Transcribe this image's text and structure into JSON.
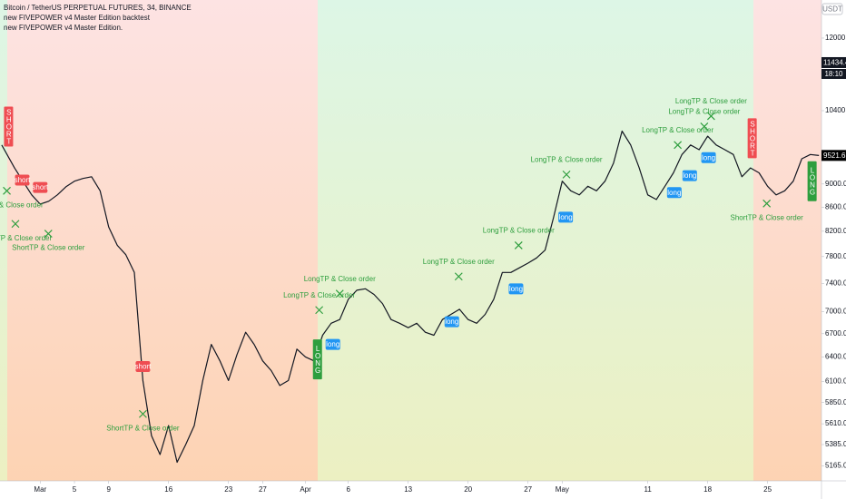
{
  "chart_data": {
    "type": "line",
    "title": "Bitcoin / TetherUS PERPETUAL FUTURES, 34, BINANCE",
    "subtitles": [
      "new FIVEPOWER v4 Master Edition backtest",
      "new FIVEPOWER v4 Master Edition."
    ],
    "currency": "USDT",
    "log_scale": true,
    "grid": false,
    "color": "#131722",
    "x": [
      -4.5,
      -3,
      -1,
      0,
      1,
      2,
      3,
      4,
      5,
      6,
      7,
      8,
      9,
      10,
      11,
      12,
      13,
      14,
      15,
      16,
      17,
      18,
      19,
      20,
      21,
      22,
      23,
      24,
      25,
      26,
      27,
      28,
      29,
      30,
      31,
      32,
      33,
      34,
      35,
      36,
      37,
      38,
      39,
      40,
      41,
      42,
      43,
      44,
      45,
      46,
      47,
      48,
      49,
      50,
      51,
      52,
      53,
      54,
      55,
      56,
      57,
      58,
      59,
      60,
      61,
      62,
      63,
      64,
      65,
      66,
      67,
      68,
      69,
      70,
      71,
      72,
      73,
      74,
      75,
      76,
      77,
      78,
      79,
      80,
      81,
      82,
      83,
      84,
      85,
      86,
      87,
      88,
      89,
      90,
      91
    ],
    "values": [
      9720,
      9290,
      8810,
      8650,
      8700,
      8810,
      8950,
      9050,
      9100,
      9130,
      8880,
      8270,
      7975,
      7830,
      7560,
      6110,
      5480,
      5280,
      5590,
      5200,
      5385,
      5590,
      6110,
      6560,
      6350,
      6110,
      6430,
      6720,
      6560,
      6350,
      6230,
      6050,
      6110,
      6500,
      6400,
      6350,
      6680,
      6840,
      6890,
      7170,
      7300,
      7320,
      7240,
      7110,
      6890,
      6840,
      6780,
      6840,
      6720,
      6680,
      6890,
      6960,
      7030,
      6890,
      6840,
      6960,
      7170,
      7560,
      7560,
      7630,
      7700,
      7780,
      7900,
      8430,
      9050,
      8880,
      8810,
      8960,
      8880,
      9050,
      9380,
      9990,
      9720,
      9290,
      8810,
      8730,
      8960,
      9200,
      9540,
      9720,
      9630,
      9890,
      9720,
      9630,
      9540,
      9130,
      9290,
      9200,
      8960,
      8810,
      8880,
      9050,
      9460,
      9540,
      9520
    ],
    "xlim": [
      -4.7,
      91.3
    ],
    "ylim": [
      5013,
      12936
    ],
    "xticks": [
      {
        "value": 0,
        "label": "Mar"
      },
      {
        "value": 4,
        "label": "5"
      },
      {
        "value": 8,
        "label": "9"
      },
      {
        "value": 15,
        "label": "16"
      },
      {
        "value": 22,
        "label": "23"
      },
      {
        "value": 26,
        "label": "27"
      },
      {
        "value": 31,
        "label": "Apr"
      },
      {
        "value": 36,
        "label": "6"
      },
      {
        "value": 43,
        "label": "13"
      },
      {
        "value": 50,
        "label": "20"
      },
      {
        "value": 57,
        "label": "27"
      },
      {
        "value": 61,
        "label": "May"
      },
      {
        "value": 71,
        "label": "11"
      },
      {
        "value": 78,
        "label": "18"
      },
      {
        "value": 85,
        "label": "25"
      }
    ],
    "yticks": [
      {
        "value": 12000,
        "label": "12000.00"
      },
      {
        "value": 10400,
        "label": "10400.00"
      },
      {
        "value": 9000,
        "label": "9000.00"
      },
      {
        "value": 8600,
        "label": "8600.00"
      },
      {
        "value": 8200,
        "label": "8200.00"
      },
      {
        "value": 7800,
        "label": "7800.00"
      },
      {
        "value": 7400,
        "label": "7400.00"
      },
      {
        "value": 7000,
        "label": "7000.00"
      },
      {
        "value": 6700,
        "label": "6700.00"
      },
      {
        "value": 6400,
        "label": "6400.00"
      },
      {
        "value": 6100,
        "label": "6100.00"
      },
      {
        "value": 5850,
        "label": "5850.00"
      },
      {
        "value": 5610,
        "label": "5610.00"
      },
      {
        "value": 5385,
        "label": "5385.00"
      },
      {
        "value": 5165,
        "label": "5165.00"
      }
    ],
    "price_tags": [
      {
        "value": 11434.43,
        "sub": "18:10",
        "color": "#131722"
      },
      {
        "value": 9521.65,
        "color": "#000000"
      }
    ],
    "annotations": [
      {
        "kind": "tp-long",
        "text": "LongTP & Close order",
        "x": 78.4,
        "y": 10290
      },
      {
        "kind": "tp-long",
        "text": "LongTP & Close order",
        "x": 77.6,
        "y": 10080
      },
      {
        "kind": "tp-long",
        "text": "LongTP & Close order",
        "x": 74.5,
        "y": 9720
      },
      {
        "kind": "tp-long",
        "text": "LongTP & Close order",
        "x": 61.5,
        "y": 9170
      },
      {
        "kind": "tp-long",
        "text": "LongTP & Close order",
        "x": 55.9,
        "y": 7975
      },
      {
        "kind": "tp-long",
        "text": "LongTP & Close order",
        "x": 48.9,
        "y": 7500
      },
      {
        "kind": "tp-long",
        "text": "LongTP & Close order",
        "x": 35.0,
        "y": 7250
      },
      {
        "kind": "tp-long",
        "text": "LongTP & Close order",
        "x": 32.6,
        "y": 7020
      },
      {
        "kind": "tp-short",
        "text": "ShortTP & Close order",
        "x": 84.9,
        "y": 8660
      },
      {
        "kind": "tp-short",
        "text": "ShortTP & Close order",
        "x": 0.95,
        "y": 8160
      },
      {
        "kind": "tp-short",
        "text": "ShortTP & Close order",
        "x": -2.9,
        "y": 8320
      },
      {
        "kind": "tp-short",
        "text": "ShortTP & Close order",
        "x": -3.9,
        "y": 8880
      },
      {
        "kind": "tp-short",
        "text": "ShortTP & Close order",
        "x": 12.0,
        "y": 5720
      },
      {
        "kind": "long",
        "text": "long",
        "x": 34.2,
        "y": 6560
      },
      {
        "kind": "long",
        "text": "long",
        "x": 48.1,
        "y": 6860
      },
      {
        "kind": "long",
        "text": "long",
        "x": 55.6,
        "y": 7320
      },
      {
        "kind": "long",
        "text": "long",
        "x": 61.4,
        "y": 8430
      },
      {
        "kind": "long",
        "text": "long",
        "x": 74.1,
        "y": 8850
      },
      {
        "kind": "long",
        "text": "long",
        "x": 75.9,
        "y": 9150
      },
      {
        "kind": "long",
        "text": "long",
        "x": 78.1,
        "y": 9480
      },
      {
        "kind": "short",
        "text": "short",
        "x": 0,
        "y": 8940
      },
      {
        "kind": "short",
        "text": "short",
        "x": 12.0,
        "y": 6280
      },
      {
        "kind": "short",
        "text": "short",
        "x": -2.1,
        "y": 9070
      },
      {
        "kind": "vshort",
        "text": "SHORT",
        "x": -3.7,
        "y": 10080
      },
      {
        "kind": "vshort",
        "text": "SHORT",
        "x": 83.2,
        "y": 9850
      },
      {
        "kind": "vlong",
        "text": "LONG",
        "x": 32.4,
        "y": 6370
      },
      {
        "kind": "vlong",
        "text": "LONG",
        "x": 90.2,
        "y": 9050
      }
    ]
  }
}
